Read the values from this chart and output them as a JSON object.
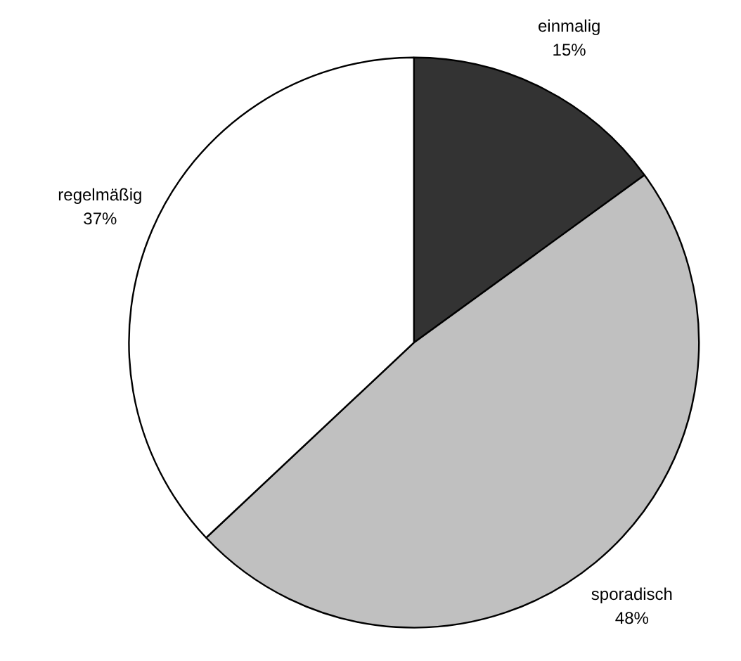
{
  "chart_data": {
    "type": "pie",
    "categories": [
      "einmalig",
      "sporadisch",
      "regelmäßig"
    ],
    "values": [
      15,
      48,
      37
    ],
    "colors": [
      "#333333",
      "#c0c0c0",
      "#ffffff"
    ],
    "value_labels": [
      "15%",
      "48%",
      "37%"
    ]
  }
}
